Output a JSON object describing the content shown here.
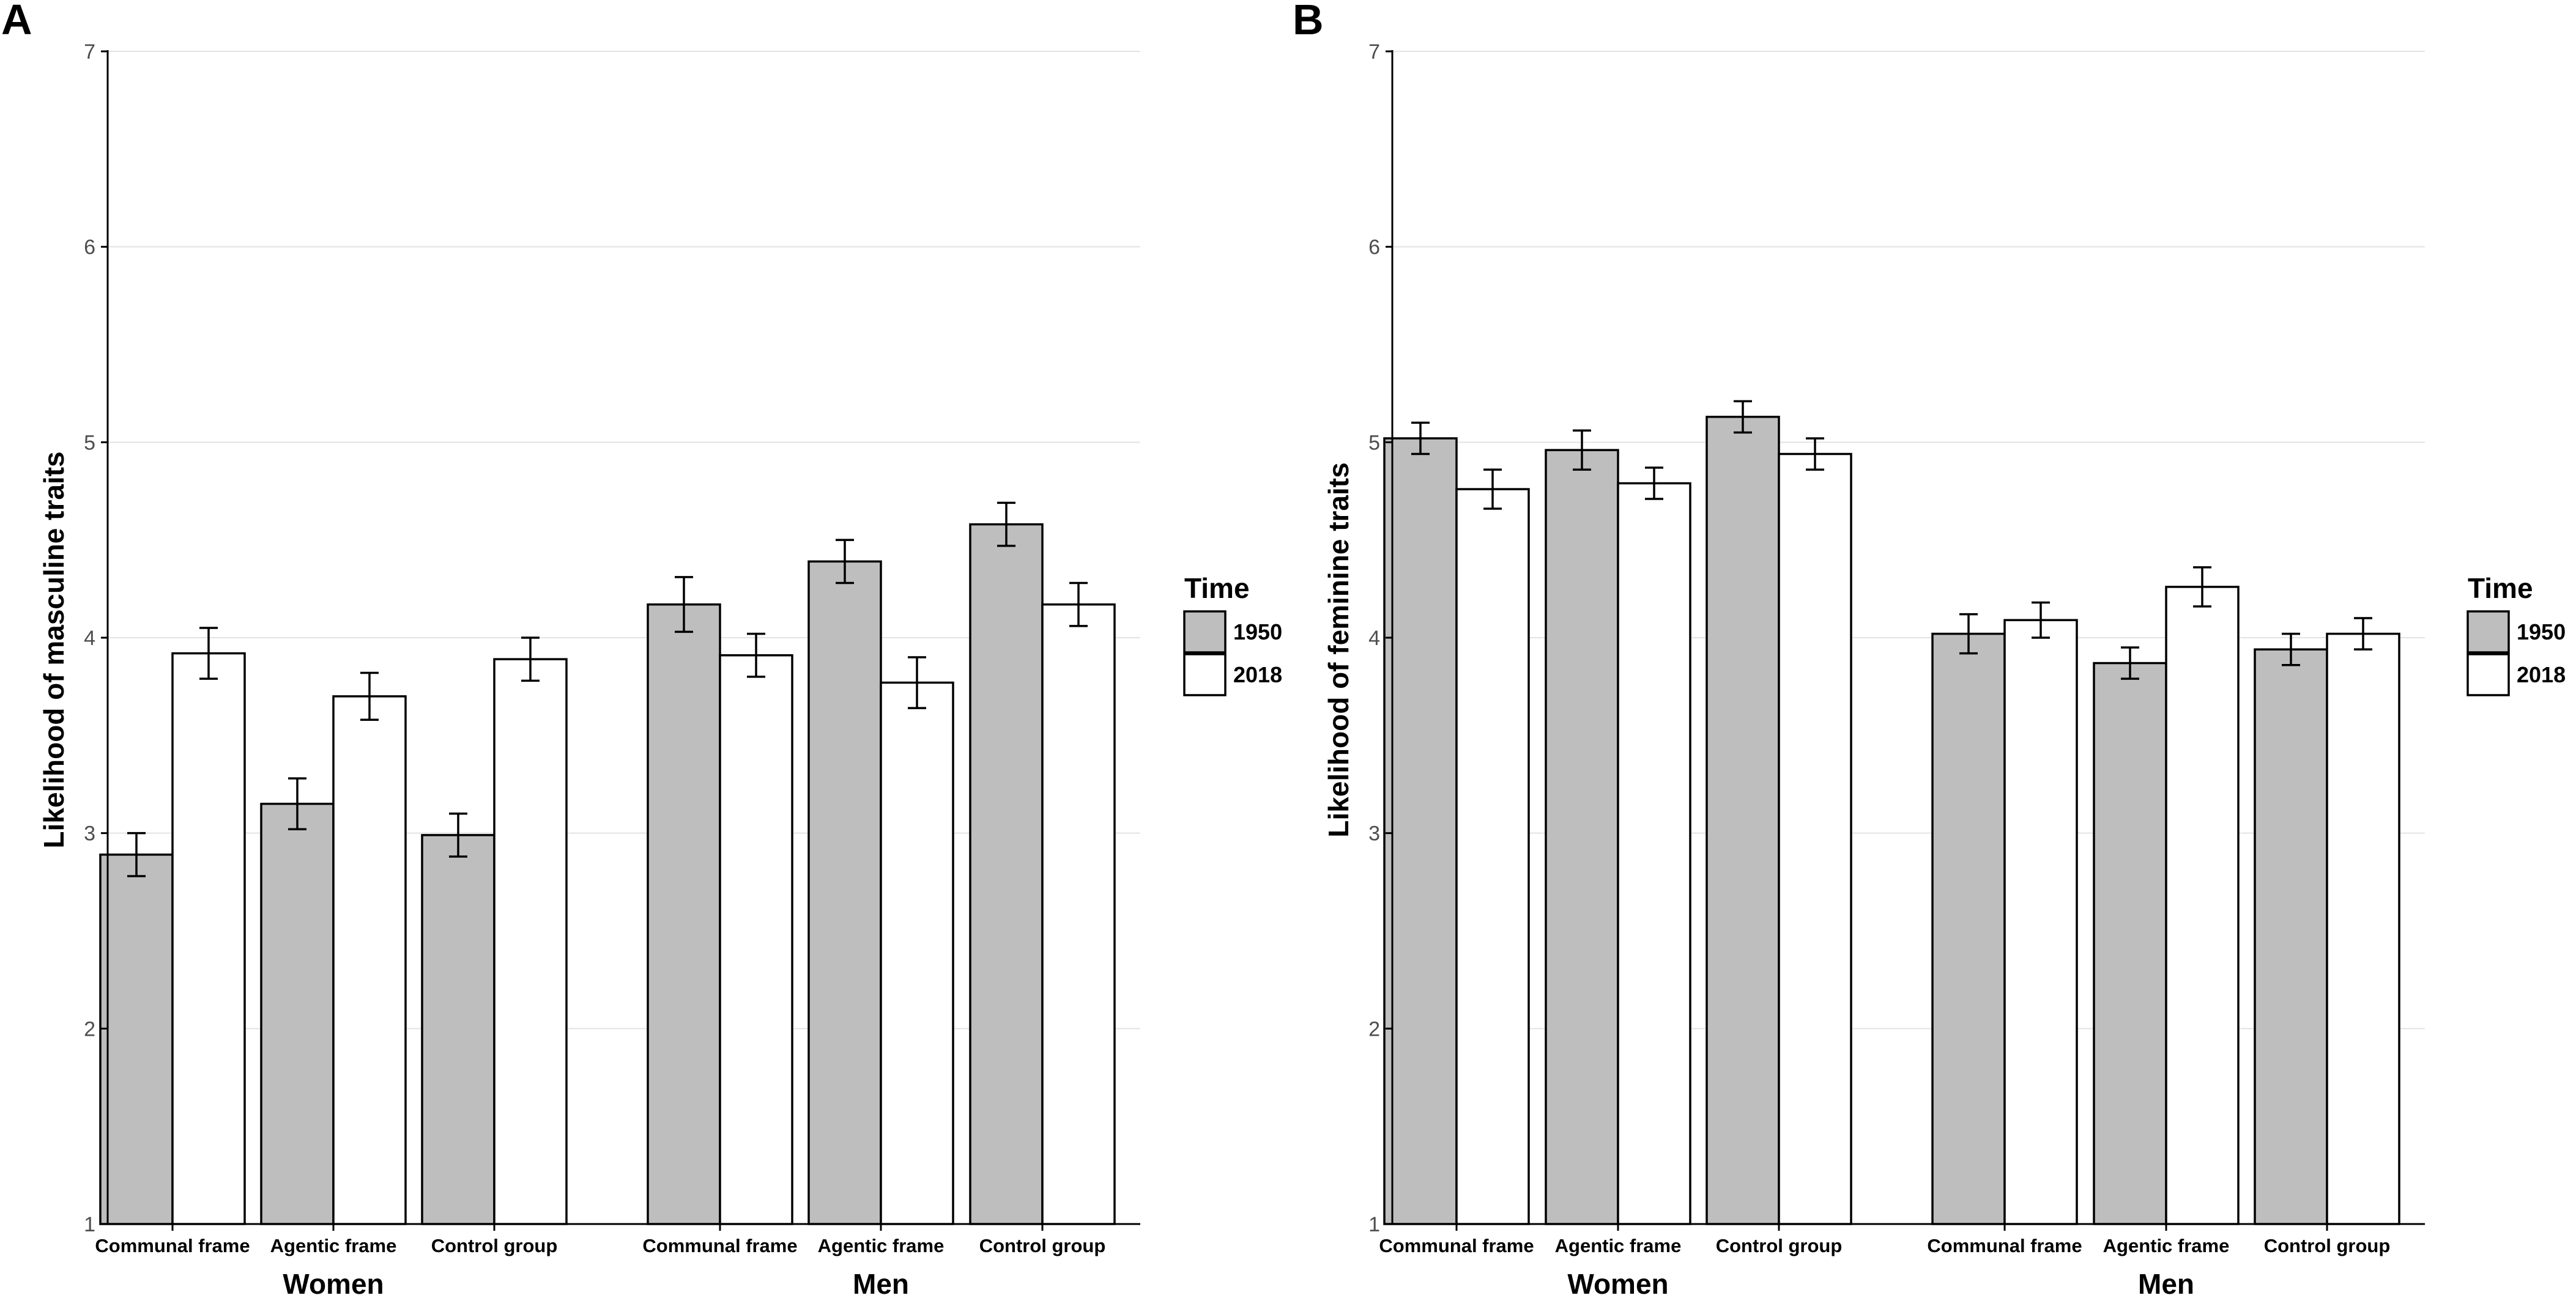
{
  "chart_data": [
    {
      "type": "bar",
      "panel": "A",
      "ylabel": "Likelihood of masculine traits",
      "ylim": [
        1,
        7
      ],
      "yticks": [
        1,
        2,
        3,
        4,
        5,
        6,
        7
      ],
      "groups": [
        "Women",
        "Men"
      ],
      "categories": [
        "Communal frame",
        "Agentic frame",
        "Control group"
      ],
      "legend_title": "Time",
      "series": [
        {
          "name": "1950",
          "color": "#bebebe",
          "values": [
            [
              2.89,
              3.15,
              2.99
            ],
            [
              4.17,
              4.39,
              4.58
            ]
          ],
          "errors": [
            [
              0.11,
              0.13,
              0.11
            ],
            [
              0.14,
              0.11,
              0.11
            ]
          ]
        },
        {
          "name": "2018",
          "color": "#ffffff",
          "values": [
            [
              3.92,
              3.7,
              3.89
            ],
            [
              3.91,
              3.77,
              4.17
            ]
          ],
          "errors": [
            [
              0.13,
              0.12,
              0.11
            ],
            [
              0.11,
              0.13,
              0.11
            ]
          ]
        }
      ]
    },
    {
      "type": "bar",
      "panel": "B",
      "ylabel": "Likelihood of feminine traits",
      "ylim": [
        1,
        7
      ],
      "yticks": [
        1,
        2,
        3,
        4,
        5,
        6,
        7
      ],
      "groups": [
        "Women",
        "Men"
      ],
      "categories": [
        "Communal frame",
        "Agentic frame",
        "Control group"
      ],
      "legend_title": "Time",
      "series": [
        {
          "name": "1950",
          "color": "#bebebe",
          "values": [
            [
              5.02,
              4.96,
              5.13
            ],
            [
              4.02,
              3.87,
              3.94
            ]
          ],
          "errors": [
            [
              0.08,
              0.1,
              0.08
            ],
            [
              0.1,
              0.08,
              0.08
            ]
          ]
        },
        {
          "name": "2018",
          "color": "#ffffff",
          "values": [
            [
              4.76,
              4.79,
              4.94
            ],
            [
              4.09,
              4.26,
              4.02
            ]
          ],
          "errors": [
            [
              0.1,
              0.08,
              0.08
            ],
            [
              0.09,
              0.1,
              0.08
            ]
          ]
        }
      ]
    }
  ]
}
